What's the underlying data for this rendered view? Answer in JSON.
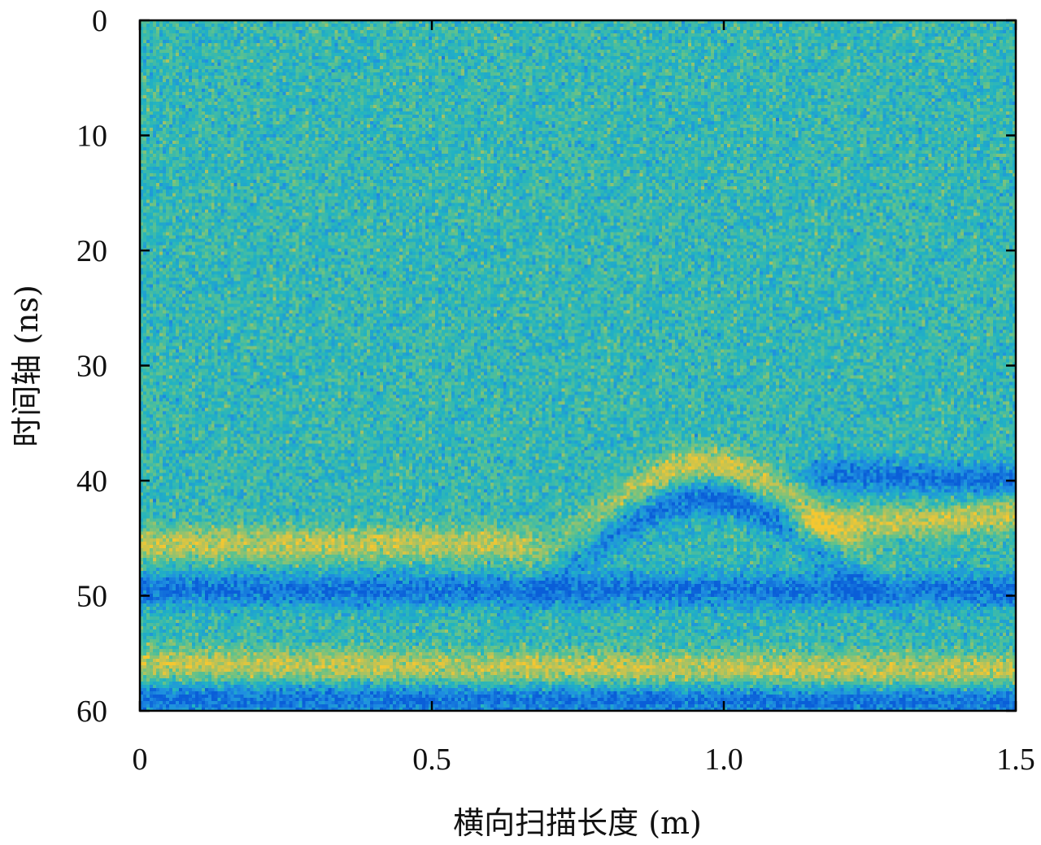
{
  "chart_data": {
    "type": "heatmap",
    "xlabel": "横向扫描长度 (m)",
    "ylabel": "时间轴 (ns)",
    "xlim": [
      0,
      1.5
    ],
    "ylim": [
      0,
      60
    ],
    "y_inverted": true,
    "x_ticks": [
      0,
      0.5,
      1.0,
      1.5
    ],
    "x_tick_labels": [
      "0",
      "0.5",
      "1.0",
      "1.5"
    ],
    "y_ticks": [
      0,
      10,
      20,
      30,
      40,
      50,
      60
    ],
    "y_tick_labels": [
      "0",
      "10",
      "20",
      "30",
      "40",
      "50",
      "60"
    ],
    "colormap": [
      "#0a5ed8",
      "#1f8fe0",
      "#21b3c2",
      "#5fc28c",
      "#b7c25a",
      "#f5c730"
    ],
    "features": [
      {
        "description": "bright horizontal reflection band",
        "x": [
          0,
          0.65
        ],
        "y": [
          45.5,
          45.5
        ],
        "polarity": "high"
      },
      {
        "description": "dark horizontal band",
        "x": [
          0,
          1.5
        ],
        "y": [
          49.5,
          49.5
        ],
        "polarity": "low"
      },
      {
        "description": "bright horizontal reflection band",
        "x": [
          0,
          1.5
        ],
        "y": [
          56,
          56.5
        ],
        "polarity": "high"
      },
      {
        "description": "dark horizontal band",
        "x": [
          0,
          1.5
        ],
        "y": [
          59,
          59.2
        ],
        "polarity": "low"
      },
      {
        "description": "bright hyperbola",
        "x_apex": 0.97,
        "y_apex": 38.5,
        "polarity": "high"
      },
      {
        "description": "dark hyperbola",
        "x_apex": 0.97,
        "y_apex": 41.5,
        "polarity": "low"
      },
      {
        "description": "dark band right",
        "x": [
          1.18,
          1.5
        ],
        "y": [
          39.5,
          40
        ],
        "polarity": "low"
      },
      {
        "description": "bright band right",
        "x": [
          1.15,
          1.5
        ],
        "y": [
          44,
          43
        ],
        "polarity": "high"
      }
    ]
  }
}
